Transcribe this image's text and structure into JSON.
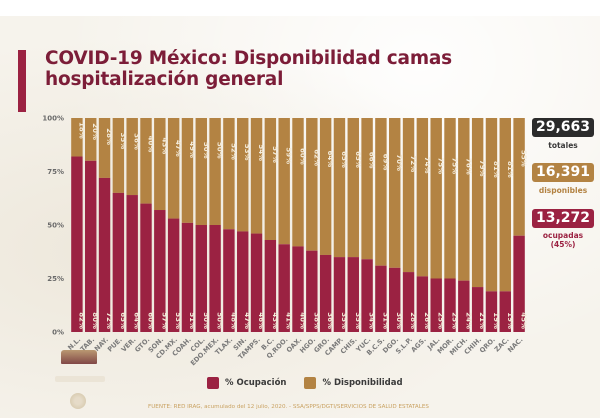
{
  "header": {
    "title": "COVID-19 México: Disponibilidad camas hospitalización general"
  },
  "summary": {
    "total": {
      "value": "29,663",
      "caption": "totales",
      "color": "#2b2b2b"
    },
    "available": {
      "value": "16,391",
      "caption": "disponibles",
      "color": "#b38343"
    },
    "occupied": {
      "value": "13,272",
      "caption": "ocupadas",
      "caption_pct": "(45%)",
      "color": "#9b2242"
    }
  },
  "legend": {
    "items": [
      {
        "label": "% Ocupación",
        "color": "#9b2242"
      },
      {
        "label": "% Disponibilidad",
        "color": "#b38343"
      }
    ]
  },
  "footer": {
    "source": "FUENTE: RED IRAG, acumulado del 12 julio, 2020. -  SSA/SPPS/DGTI/SERVICIOS DE SALUD ESTATALES"
  },
  "chart_data": {
    "type": "bar",
    "stacked": true,
    "percent": true,
    "title": "COVID-19 México: Disponibilidad camas hospitalización general",
    "xlabel": "",
    "ylabel": "",
    "ylim": [
      0,
      100
    ],
    "yticks": [
      "0%",
      "25%",
      "50%",
      "75%",
      "100%"
    ],
    "grid": false,
    "legend_position": "bottom",
    "categories": [
      "N.L.",
      "TAB.",
      "NAY.",
      "PUE.",
      "VER.",
      "GTO.",
      "SON.",
      "CD.MX.",
      "COAH.",
      "COL.",
      "EDO.MEX.",
      "TLAX.",
      "SIN.",
      "TAMPS.",
      "B.C.",
      "Q.ROO.",
      "OAX.",
      "HGO.",
      "GRO.",
      "CAMP.",
      "CHIS.",
      "YUC.",
      "B.C.S.",
      "DGO.",
      "S.L.P.",
      "AGS.",
      "JAL.",
      "MOR.",
      "MICH.",
      "CHIH.",
      "QRO.",
      "ZAC.",
      "NAC."
    ],
    "series": [
      {
        "name": "% Ocupación",
        "color": "#9b2242",
        "values": [
          82,
          80,
          72,
          65,
          64,
          60,
          57,
          53,
          51,
          50,
          50,
          48,
          47,
          46,
          43,
          41,
          40,
          38,
          36,
          35,
          35,
          34,
          31,
          30,
          28,
          26,
          25,
          25,
          24,
          21,
          19,
          19,
          45
        ]
      },
      {
        "name": "% Disponibilidad",
        "color": "#b38343",
        "values": [
          18,
          20,
          28,
          35,
          36,
          40,
          43,
          47,
          49,
          50,
          50,
          52,
          53,
          54,
          57,
          59,
          60,
          62,
          64,
          65,
          65,
          66,
          69,
          70,
          72,
          74,
          75,
          75,
          76,
          79,
          81,
          81,
          55
        ]
      }
    ]
  }
}
